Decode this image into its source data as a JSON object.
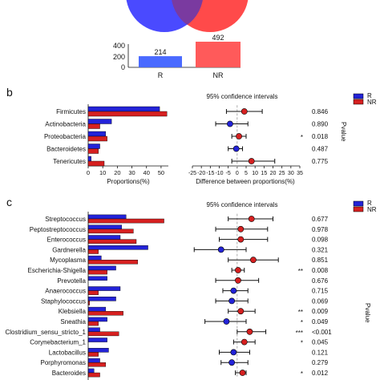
{
  "colors": {
    "r": "#2323d8",
    "nr": "#d62020",
    "venn_r": "#4a4aff",
    "venn_nr": "#ff4a4a",
    "overlap": "#7a3aa0"
  },
  "top": {
    "chart_data": {
      "type": "bar",
      "categories": [
        "R",
        "NR"
      ],
      "values": [
        214,
        492
      ],
      "ylim": [
        0,
        400
      ],
      "yticks": [
        0,
        200,
        400
      ]
    },
    "value_labels": [
      "214",
      "492"
    ],
    "ytick_labels": [
      "0",
      "200",
      "400"
    ]
  },
  "panel_b": {
    "letter": "b",
    "ci_title": "95% confidence intervals",
    "legend": [
      "R",
      "NR"
    ],
    "pvalue_label": "Pvalue",
    "xlabel_left": "Proportions(%)",
    "xlabel_right": "Difference between proportions(%)",
    "left_ticks": [
      "0",
      "10",
      "20",
      "30",
      "40",
      "50"
    ],
    "right_ticks": [
      "-25",
      "-20",
      "-15",
      "-10",
      "-5",
      "0",
      "5",
      "10",
      "15",
      "20",
      "25",
      "30",
      "35"
    ],
    "chart_data": {
      "type": "bar",
      "categories": [
        "Firmicutes",
        "Actinobacteria",
        "Proteobacteria",
        "Bacteroidetes",
        "Tenericutes"
      ],
      "series": [
        {
          "name": "R",
          "values": [
            49,
            16,
            12,
            8,
            2
          ]
        },
        {
          "name": "NR",
          "values": [
            54,
            8,
            13,
            7,
            11
          ]
        }
      ],
      "xlim_left": [
        0,
        55
      ],
      "difference": [
        4,
        -4,
        1,
        -0.5,
        8
      ],
      "ci_low": [
        -6,
        -12,
        -3,
        -5,
        -3
      ],
      "ci_high": [
        14,
        6,
        5,
        3,
        21
      ],
      "xlim_right": [
        -25,
        35
      ],
      "pvalues": [
        "0.846",
        "0.890",
        "0.018",
        "0.487",
        "0.775"
      ],
      "stars": [
        "",
        "",
        "*",
        "",
        ""
      ]
    }
  },
  "panel_c": {
    "letter": "c",
    "ci_title": "95% confidence intervals",
    "legend": [
      "R",
      "NR"
    ],
    "pvalue_label": "Pvalue",
    "chart_data": {
      "type": "bar",
      "categories": [
        "Streptococcus",
        "Peptostreptococcus",
        "Enterococcus",
        "Gardnerella",
        "Mycoplasma",
        "Escherichia-Shigella",
        "Prevotella",
        "Anaerococcus",
        "Staphylococcus",
        "Klebsiella",
        "Sneathia",
        "Clostridium_sensu_stricto_1",
        "Corynebacterium_1",
        "Lactobacillus",
        "Porphyromonas",
        "Bacteroides"
      ],
      "series": [
        {
          "name": "R",
          "values": [
            26,
            23,
            22,
            41,
            9,
            19,
            13,
            22,
            19,
            12,
            13,
            8,
            13,
            14,
            8,
            4
          ]
        },
        {
          "name": "NR",
          "values": [
            52,
            31,
            33,
            7,
            34,
            13,
            0,
            7,
            1,
            24,
            7,
            21,
            0,
            7,
            12,
            8
          ]
        }
      ],
      "xlim_left": [
        0,
        55
      ],
      "difference": [
        8,
        2,
        2,
        -9,
        9,
        0.5,
        0.5,
        -2,
        -3,
        2,
        -6,
        7,
        4,
        -2,
        -3,
        3
      ],
      "ci_low": [
        -5,
        -12,
        -10,
        -24,
        -5,
        -3,
        -12,
        -8,
        -12,
        -5,
        -18,
        0,
        -2,
        -10,
        -9,
        -1
      ],
      "ci_high": [
        20,
        17,
        17,
        5,
        23,
        4,
        12,
        6,
        6,
        10,
        5,
        16,
        10,
        7,
        6,
        5
      ],
      "xlim_right": [
        -25,
        35
      ],
      "pvalues": [
        "0.677",
        "0.978",
        "0.098",
        "0.321",
        "0.851",
        "0.008",
        "0.676",
        "0.715",
        "0.069",
        "0.009",
        "0.049",
        "<0.001",
        "0.045",
        "0.121",
        "0.279",
        "0.012"
      ],
      "stars": [
        "",
        "",
        "",
        "",
        "",
        "**",
        "",
        "",
        "",
        "**",
        "*",
        "***",
        "*",
        "",
        "",
        "*"
      ]
    }
  }
}
